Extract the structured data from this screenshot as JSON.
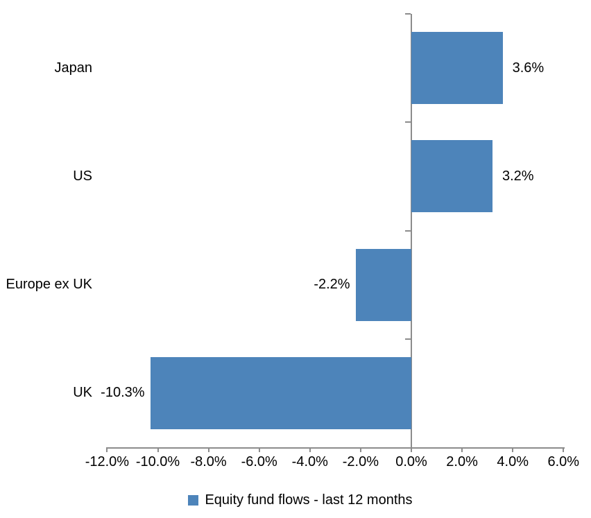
{
  "chart_data": {
    "type": "bar",
    "orientation": "horizontal",
    "categories": [
      "Japan",
      "US",
      "Europe ex UK",
      "UK"
    ],
    "values": [
      3.6,
      3.2,
      -2.2,
      -10.3
    ],
    "data_labels": [
      "3.6%",
      "3.2%",
      "-2.2%",
      "-10.3%"
    ],
    "xlim": [
      -12,
      6
    ],
    "x_tick_values": [
      -12,
      -10,
      -8,
      -6,
      -4,
      -2,
      0,
      2,
      4,
      6
    ],
    "x_tick_labels": [
      "-12.0%",
      "-10.0%",
      "-8.0%",
      "-6.0%",
      "-4.0%",
      "-2.0%",
      "0.0%",
      "2.0%",
      "4.0%",
      "6.0%"
    ],
    "grid": "off",
    "legend_position": "bottom",
    "legend": "Equity fund flows - last 12 months",
    "bar_color": "#4d84ba",
    "axis_color": "#8c8c8c",
    "text_color": "#000000"
  }
}
